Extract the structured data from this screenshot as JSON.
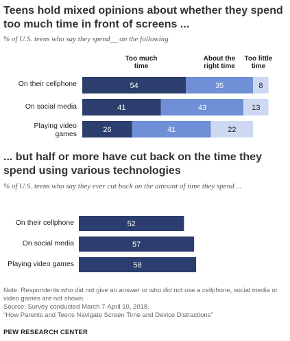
{
  "chart_data": [
    {
      "type": "bar",
      "stacked": true,
      "orientation": "horizontal",
      "title": "Teens hold mixed opinions about whether they spend too much time in front of screens ...",
      "subtitle": "% of U.S. teens who say they spend__ on the following",
      "categories": [
        "On their cellphone",
        "On social media",
        "Playing video games"
      ],
      "series": [
        {
          "name": "Too much time",
          "values": [
            54,
            41,
            26
          ],
          "color": "#2c3e6e"
        },
        {
          "name": "About the right time",
          "values": [
            35,
            43,
            41
          ],
          "color": "#6f8fd6"
        },
        {
          "name": "Too little time",
          "values": [
            8,
            13,
            22
          ],
          "color": "#cdd9f2"
        }
      ],
      "column_headers": [
        "Too much\ntime",
        "About the\nright time",
        "Too little\ntime"
      ],
      "xlim": [
        0,
        100
      ]
    },
    {
      "type": "bar",
      "orientation": "horizontal",
      "title": "... but half or more have cut back on the time they spend using various technologies",
      "subtitle": "% of U.S. teens who say they ever cut back on the amount of time they spend ...",
      "categories": [
        "On their cellphone",
        "On social media",
        "Playing video games"
      ],
      "values": [
        52,
        57,
        58
      ],
      "color": "#2c3e6e",
      "xlim": [
        0,
        100
      ]
    }
  ],
  "notes": {
    "note": "Note: Respondents who did not give an answer or who did not use a cellphone, social media or video games are not shown.",
    "source": "Source: Survey conducted March 7-April 10, 2018.",
    "report": "“How Parents and Teens Navigate Screen Time and Device Distractions”"
  },
  "brand": "PEW RESEARCH CENTER"
}
